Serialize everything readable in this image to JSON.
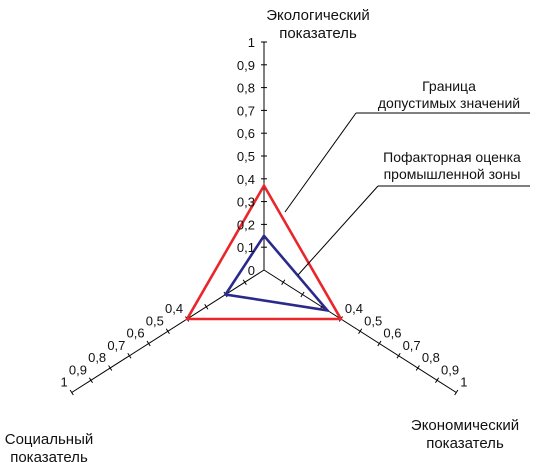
{
  "chart_data": {
    "type": "radar",
    "axes": [
      {
        "id": "eco",
        "title_lines": [
          "Экологический",
          "показатель"
        ],
        "ticks": [
          "0",
          "0,1",
          "0,2",
          "0,3",
          "0,4",
          "0,5",
          "0,6",
          "0,7",
          "0,8",
          "0,9",
          "1"
        ]
      },
      {
        "id": "econ",
        "title_lines": [
          "Экономический",
          "показатель"
        ],
        "ticks": [
          "0,4",
          "0,5",
          "0,6",
          "0,7",
          "0,8",
          "0,9",
          "1"
        ]
      },
      {
        "id": "soc",
        "title_lines": [
          "Социальный",
          "показатель"
        ],
        "ticks": [
          "0,4",
          "0,5",
          "0,6",
          "0,7",
          "0,8",
          "0,9",
          "1"
        ]
      }
    ],
    "range": [
      0,
      1
    ],
    "series": [
      {
        "name": "Граница допустимых значений",
        "label_lines": [
          "Граница",
          "допустимых значений"
        ],
        "values": {
          "eco": 0.37,
          "econ": 0.4,
          "soc": 0.4
        },
        "color": "#e8262b"
      },
      {
        "name": "Пофакторная оценка промышленной зоны",
        "label_lines": [
          "Пофакторная оценка",
          "промышленной зоны"
        ],
        "values": {
          "eco": 0.15,
          "econ": 0.33,
          "soc": 0.2
        },
        "color": "#2b2a8c"
      }
    ]
  }
}
